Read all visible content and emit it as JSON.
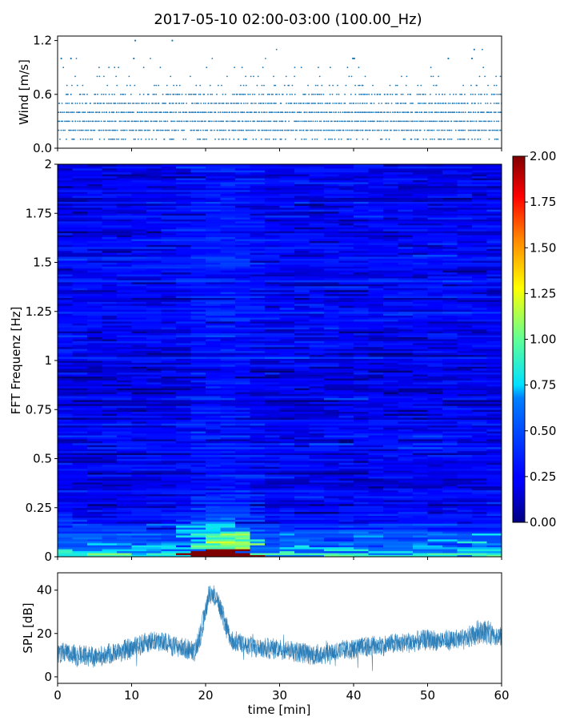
{
  "figure_title": "2017-05-10 02:00-03:00 (100.00_Hz)",
  "chart_data": [
    {
      "type": "scatter",
      "name": "wind-panel",
      "ylabel": "Wind [m/s]",
      "ylim": [
        0.0,
        1.25
      ],
      "yticks": [
        "0.0",
        "0.6",
        "1.2"
      ],
      "ytick_values": [
        0.0,
        0.6,
        1.2
      ],
      "xlim": [
        0,
        60
      ],
      "marker_color": "#1f77b4",
      "levels": [
        0.1,
        0.2,
        0.3,
        0.4,
        0.5,
        0.6,
        0.7,
        0.8,
        0.9,
        1.0,
        1.1,
        1.2
      ],
      "level_density": [
        0.45,
        0.9,
        0.95,
        0.95,
        0.85,
        0.55,
        0.22,
        0.1,
        0.04,
        0.015,
        0.004,
        0.002
      ],
      "notable_points": [
        {
          "x": 10.5,
          "y": 1.2
        },
        {
          "x": 15.5,
          "y": 1.2
        },
        {
          "x": 56.3,
          "y": 1.1
        },
        {
          "x": 0.5,
          "y": 1.0
        },
        {
          "x": 1.8,
          "y": 1.0
        },
        {
          "x": 10.3,
          "y": 1.0
        },
        {
          "x": 39.9,
          "y": 1.0
        },
        {
          "x": 40.1,
          "y": 1.0
        },
        {
          "x": 52.8,
          "y": 1.0
        },
        {
          "x": 56.0,
          "y": 1.0
        }
      ]
    },
    {
      "type": "heatmap",
      "name": "fft-spectrogram",
      "ylabel": "FFT Frequenz [Hz]",
      "ylim": [
        0,
        2
      ],
      "yticks": [
        "0",
        "0.25",
        "0.5",
        "0.75",
        "1",
        "1.25",
        "1.5",
        "1.75",
        "2"
      ],
      "ytick_values": [
        0,
        0.25,
        0.5,
        0.75,
        1,
        1.25,
        1.5,
        1.75,
        2
      ],
      "xlim": [
        0,
        60
      ],
      "colormap": "jet",
      "colorbar_range": [
        0.0,
        2.0
      ],
      "colorbar_ticks": [
        "0.00",
        "0.25",
        "0.50",
        "0.75",
        "1.00",
        "1.25",
        "1.50",
        "1.75",
        "2.00"
      ],
      "colorbar_tick_values": [
        0,
        0.25,
        0.5,
        0.75,
        1.0,
        1.25,
        1.5,
        1.75,
        2.0
      ],
      "background_level": 0.22,
      "event_interval_min": [
        18,
        26
      ],
      "event_peak_level": 2.0,
      "low_frequency_band_hz": [
        0,
        0.2
      ]
    },
    {
      "type": "line",
      "name": "spl-trace",
      "ylabel": "SPL [dB]",
      "xlabel": "time [min]",
      "ylim": [
        -3,
        48
      ],
      "yticks": [
        "0",
        "20",
        "40"
      ],
      "ytick_values": [
        0,
        20,
        40
      ],
      "xlim": [
        0,
        60
      ],
      "xticks": [
        "0",
        "10",
        "20",
        "30",
        "40",
        "50",
        "60"
      ],
      "xtick_values": [
        0,
        10,
        20,
        30,
        40,
        50,
        60
      ],
      "line_color": "#1f77b4",
      "envelope_time_min": [
        0,
        5,
        10,
        13,
        16,
        18.5,
        19.5,
        20.5,
        21.5,
        22.5,
        23.5,
        25,
        27,
        30,
        35,
        40,
        45,
        50,
        55,
        57,
        60
      ],
      "envelope_mean_db": [
        11,
        9,
        13,
        17,
        14,
        12,
        22,
        39,
        37,
        26,
        17,
        15,
        13,
        13,
        10,
        13,
        15,
        17,
        17,
        21,
        19
      ],
      "envelope_halfwidth_db": [
        5,
        5,
        5,
        5,
        5,
        5,
        6,
        5,
        5,
        6,
        5,
        5,
        5,
        5,
        5,
        5,
        5,
        5,
        5,
        6,
        5
      ]
    }
  ]
}
